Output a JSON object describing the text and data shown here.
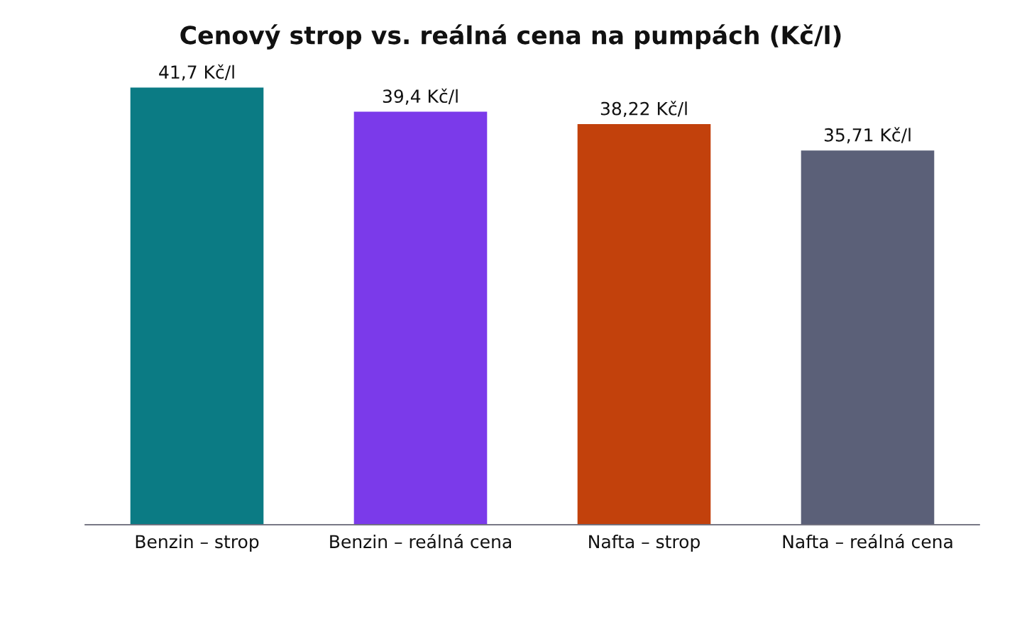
{
  "chart_data": {
    "type": "bar",
    "title": "Cenový strop vs. reálná cena na pumpách (Kč/l)",
    "categories": [
      "Benzin – strop",
      "Benzin – reálná cena",
      "Nafta – strop",
      "Nafta – reálná cena"
    ],
    "values": [
      41.7,
      39.4,
      38.22,
      35.71
    ],
    "colors": [
      "#0b7b84",
      "#7b3aea",
      "#c2410c",
      "#5b6078"
    ],
    "value_labels": [
      "41,7 Kč/l",
      "39,4 Kč/l",
      "38,22 Kč/l",
      "35,71 Kč/l"
    ],
    "tick_labels": "x",
    "grid": false
  }
}
